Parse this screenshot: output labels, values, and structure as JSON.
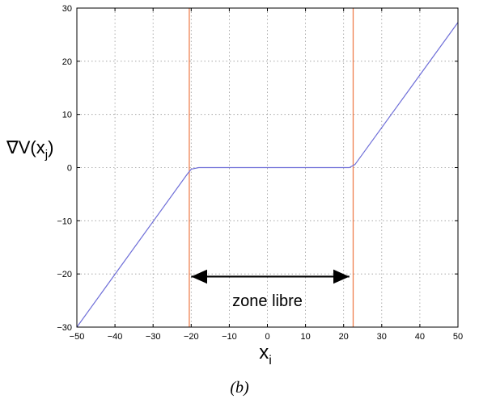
{
  "chart_data": {
    "type": "line",
    "xlabel": "x",
    "xlabel_subscript": "i",
    "ylabel_prefix": "∇V(x",
    "ylabel_subscript": "j",
    "ylabel_suffix": ")",
    "xlim": [
      -50,
      50
    ],
    "ylim": [
      -30,
      30
    ],
    "xticks": [
      -50,
      -40,
      -30,
      -20,
      -10,
      0,
      10,
      20,
      30,
      40,
      50
    ],
    "yticks": [
      -30,
      -20,
      -10,
      0,
      10,
      20,
      30
    ],
    "xtick_labels": [
      "−50",
      "−40",
      "−30",
      "−20",
      "−10",
      "0",
      "10",
      "20",
      "30",
      "40",
      "50"
    ],
    "ytick_labels": [
      "−30",
      "−20",
      "−10",
      "0",
      "10",
      "20",
      "30"
    ],
    "grid": true,
    "series": [
      {
        "color": "#6f6fd8",
        "x": [
          -50,
          -21,
          -20,
          -18,
          0,
          21.5,
          23,
          50
        ],
        "y": [
          -30,
          -1.2,
          -0.3,
          0,
          0,
          0,
          0.6,
          27.3
        ]
      }
    ],
    "vertical_lines": [
      {
        "x": -20.5,
        "color": "#f08050"
      },
      {
        "x": 22.5,
        "color": "#f08050"
      }
    ],
    "annotation": {
      "text": "zone libre",
      "arrow_from_x": -20,
      "arrow_to_x": 21.5,
      "arrow_y": -20.5,
      "text_x": 0,
      "text_y": -25
    },
    "caption": "(b)"
  }
}
